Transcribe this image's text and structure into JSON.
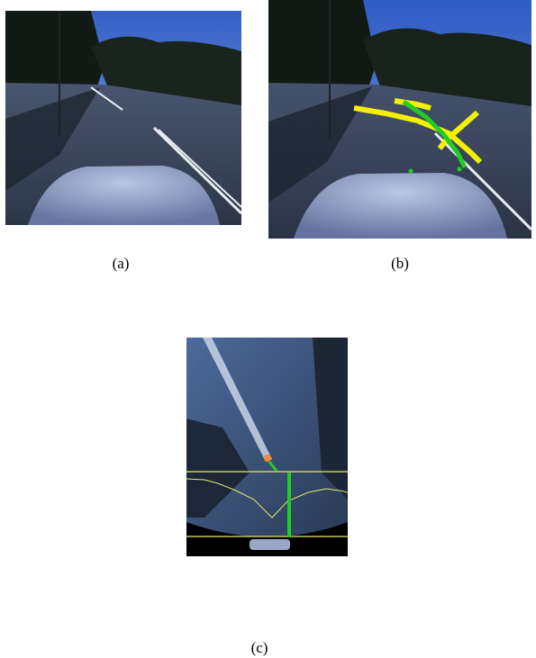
{
  "figure": {
    "panels": [
      {
        "id": "a",
        "caption": "(a)",
        "content": "road-scene-photo"
      },
      {
        "id": "b",
        "caption": "(b)",
        "content": "road-scene-with-detected-lane-overlays"
      },
      {
        "id": "c",
        "caption": "(c)",
        "content": "inverse-perspective-mapped-view-with-profiles"
      }
    ]
  },
  "colors": {
    "overlay_yellow": "#f5f000",
    "overlay_green": "#22cc22",
    "sky": "#3a63c4",
    "road": "#3a4a63",
    "trees": "#14201a"
  }
}
